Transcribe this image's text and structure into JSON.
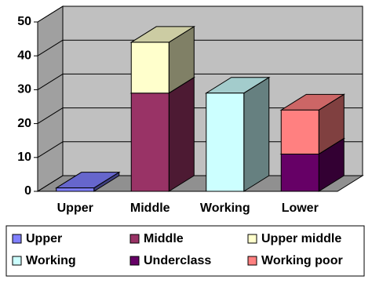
{
  "chart_data": {
    "type": "bar3d_stacked",
    "categories": [
      "Upper",
      "Middle",
      "Working",
      "Lower"
    ],
    "series": [
      {
        "name": "Upper",
        "color": "#8080ff",
        "values": [
          1,
          null,
          null,
          null
        ]
      },
      {
        "name": "Middle",
        "color": "#993366",
        "values": [
          null,
          29,
          null,
          null
        ]
      },
      {
        "name": "Upper middle",
        "color": "#ffffcc",
        "values": [
          null,
          15,
          null,
          null
        ]
      },
      {
        "name": "Working",
        "color": "#ccffff",
        "values": [
          null,
          null,
          29,
          null
        ]
      },
      {
        "name": "Underclass",
        "color": "#660066",
        "values": [
          null,
          null,
          null,
          11
        ]
      },
      {
        "name": "Working poor",
        "color": "#ff8080",
        "values": [
          null,
          null,
          null,
          13
        ]
      }
    ],
    "ylim": [
      0,
      50
    ],
    "yticks": [
      0,
      10,
      20,
      30,
      40,
      50
    ],
    "grid": true,
    "legend": "bottom"
  }
}
